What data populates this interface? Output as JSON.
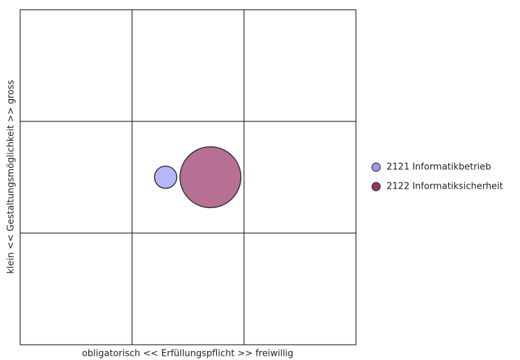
{
  "chart_data": {
    "type": "bubble",
    "xlabel": "obligatorisch << Erfüllungspflicht >> freiwillig",
    "ylabel": "klein << Gestaltungsmöglichkeit >> gross",
    "xlim": [
      0,
      3
    ],
    "ylim": [
      0,
      3
    ],
    "xticks": [
      1,
      2
    ],
    "yticks": [
      1,
      2
    ],
    "grid": true,
    "legend": "right",
    "series": [
      {
        "name": "2121 Informatikbetrieb",
        "color": "#9999ff",
        "x": [
          1.3
        ],
        "values": [
          1.5
        ],
        "sizes": [
          1
        ]
      },
      {
        "name": "2122 Informatiksicherheit",
        "color": "#993366",
        "x": [
          1.7
        ],
        "values": [
          1.5
        ],
        "sizes": [
          7.5
        ]
      }
    ]
  }
}
